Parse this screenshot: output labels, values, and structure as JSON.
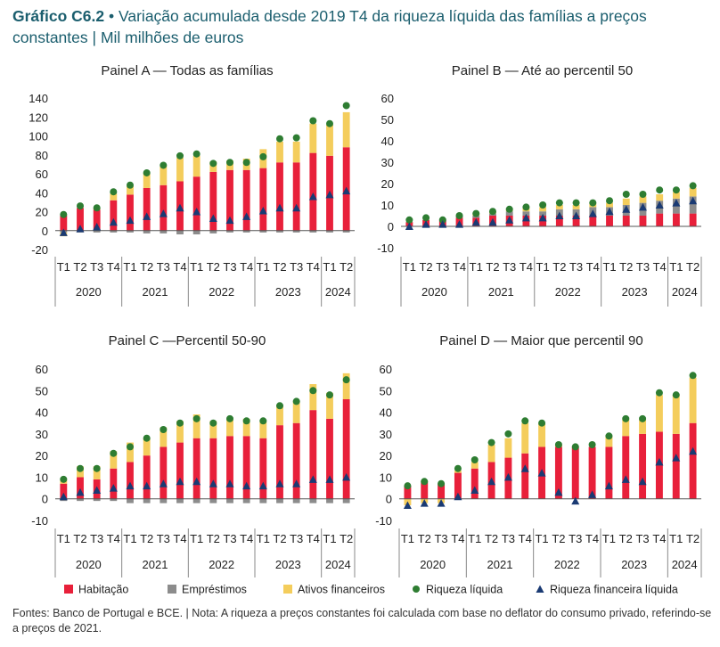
{
  "header": {
    "title_bold": "Gráfico C6.2",
    "separator": "•",
    "title_text": "Variação acumulada desde 2019 T4 da riqueza líquida das famílias a preços constantes",
    "pipe": "|",
    "unit": "Mil milhões de euros"
  },
  "footnote": "Fontes: Banco de Portugal e BCE.  |  Nota: A riqueza a preços constantes foi calculada com base no deflator do consumo privado, referindo-se a preços de 2021.",
  "colors": {
    "housing": "#e8203a",
    "loans": "#8c8c8c",
    "financial": "#f4cd5c",
    "net_wealth": "#2e7d32",
    "financial_net_wealth": "#1a3a73"
  },
  "legend": [
    {
      "label": "Habitação",
      "kind": "bar",
      "series": "housing"
    },
    {
      "label": "Empréstimos",
      "kind": "bar",
      "series": "loans"
    },
    {
      "label": "Ativos financeiros",
      "kind": "bar",
      "series": "financial"
    },
    {
      "label": "Riqueza líquida",
      "kind": "dot",
      "series": "net_wealth"
    },
    {
      "label": "Riqueza financeira líquida",
      "kind": "triangle",
      "series": "financial_net_wealth"
    }
  ],
  "chart_data": [
    {
      "type": "bar",
      "stacked": true,
      "title": "Painel A — Todas as famílias",
      "categories": [
        "T1",
        "T2",
        "T3",
        "T4",
        "T1",
        "T2",
        "T3",
        "T4",
        "T1",
        "T2",
        "T3",
        "T4",
        "T1",
        "T2",
        "T3",
        "T4",
        "T1",
        "T2"
      ],
      "years": [
        {
          "label": "2020",
          "span": 4
        },
        {
          "label": "2021",
          "span": 4
        },
        {
          "label": "2022",
          "span": 4
        },
        {
          "label": "2023",
          "span": 4
        },
        {
          "label": "2024",
          "span": 2
        }
      ],
      "ylim": [
        -20,
        140
      ],
      "yticks": [
        -20,
        0,
        20,
        40,
        60,
        80,
        100,
        120,
        140
      ],
      "series": {
        "housing": [
          16,
          24,
          22,
          32,
          38,
          45,
          48,
          52,
          57,
          62,
          64,
          64,
          66,
          72,
          72,
          82,
          79,
          88
        ],
        "loans": [
          -2,
          -2,
          -2,
          -2,
          -2,
          -3,
          -3,
          -4,
          -4,
          -3,
          -2,
          -2,
          -2,
          -2,
          -2,
          -2,
          -2,
          -2
        ],
        "financial": [
          -4,
          0,
          2,
          7,
          9,
          16,
          20,
          25,
          22,
          11,
          10,
          12,
          20,
          22,
          22,
          31,
          33,
          37
        ],
        "net_wealth": [
          17,
          26,
          24,
          41,
          48,
          61,
          69,
          79,
          81,
          71,
          72,
          72,
          78,
          97,
          98,
          116,
          113,
          132
        ],
        "financial_net_wealth": [
          -2,
          2,
          4,
          9,
          11,
          15,
          18,
          24,
          20,
          13,
          11,
          15,
          21,
          24,
          24,
          36,
          38,
          42
        ]
      }
    },
    {
      "type": "bar",
      "stacked": true,
      "title": "Painel B — Até ao percentil 50",
      "categories": [
        "T1",
        "T2",
        "T3",
        "T4",
        "T1",
        "T2",
        "T3",
        "T4",
        "T1",
        "T2",
        "T3",
        "T4",
        "T1",
        "T2",
        "T3",
        "T4",
        "T1",
        "T2"
      ],
      "years": [
        {
          "label": "2020",
          "span": 4
        },
        {
          "label": "2021",
          "span": 4
        },
        {
          "label": "2022",
          "span": 4
        },
        {
          "label": "2023",
          "span": 4
        },
        {
          "label": "2024",
          "span": 2
        }
      ],
      "ylim": [
        -10,
        60
      ],
      "yticks": [
        -10,
        0,
        10,
        20,
        30,
        40,
        50,
        60
      ],
      "series": {
        "housing": [
          2,
          3,
          3,
          4,
          4,
          5,
          5,
          5,
          5,
          5,
          5,
          5,
          5,
          5,
          5,
          6,
          6,
          6
        ],
        "loans": [
          0,
          0,
          0,
          1,
          1,
          1,
          2,
          2,
          2,
          3,
          3,
          4,
          4,
          5,
          6,
          6,
          7,
          8
        ],
        "financial": [
          0,
          0,
          0,
          0,
          1,
          1,
          1,
          2,
          2,
          2,
          2,
          2,
          2,
          3,
          3,
          3,
          3,
          4
        ],
        "net_wealth": [
          3,
          4,
          3,
          5,
          6,
          7,
          8,
          9,
          10,
          11,
          11,
          11,
          12,
          15,
          15,
          17,
          17,
          19
        ],
        "financial_net_wealth": [
          0,
          1,
          1,
          1,
          2,
          2,
          3,
          4,
          4,
          5,
          5,
          6,
          7,
          8,
          9,
          10,
          11,
          12
        ]
      }
    },
    {
      "type": "bar",
      "stacked": true,
      "title": "Painel C —Percentil 50-90",
      "categories": [
        "T1",
        "T2",
        "T3",
        "T4",
        "T1",
        "T2",
        "T3",
        "T4",
        "T1",
        "T2",
        "T3",
        "T4",
        "T1",
        "T2",
        "T3",
        "T4",
        "T1",
        "T2"
      ],
      "years": [
        {
          "label": "2020",
          "span": 4
        },
        {
          "label": "2021",
          "span": 4
        },
        {
          "label": "2022",
          "span": 4
        },
        {
          "label": "2023",
          "span": 4
        },
        {
          "label": "2024",
          "span": 2
        }
      ],
      "ylim": [
        -10,
        60
      ],
      "yticks": [
        -10,
        0,
        10,
        20,
        30,
        40,
        50,
        60
      ],
      "series": {
        "housing": [
          7,
          10,
          9,
          14,
          17,
          20,
          24,
          26,
          28,
          28,
          29,
          29,
          28,
          34,
          35,
          41,
          37,
          46
        ],
        "loans": [
          -1,
          -1,
          -1,
          -1,
          -2,
          -2,
          -2,
          -2,
          -2,
          -2,
          -2,
          -2,
          -2,
          -2,
          -2,
          -2,
          -2,
          -2
        ],
        "financial": [
          2,
          5,
          6,
          8,
          9,
          8,
          9,
          10,
          11,
          8,
          8,
          8,
          8,
          9,
          10,
          12,
          12,
          12
        ],
        "net_wealth": [
          9,
          14,
          14,
          21,
          24,
          28,
          32,
          35,
          37,
          35,
          37,
          36,
          36,
          43,
          45,
          50,
          48,
          55
        ],
        "financial_net_wealth": [
          1,
          3,
          4,
          5,
          6,
          6,
          7,
          8,
          8,
          7,
          7,
          6,
          6,
          7,
          7,
          9,
          9,
          10
        ]
      }
    },
    {
      "type": "bar",
      "stacked": true,
      "title": "Painel D — Maior que percentil 90",
      "categories": [
        "T1",
        "T2",
        "T3",
        "T4",
        "T1",
        "T2",
        "T3",
        "T4",
        "T1",
        "T2",
        "T3",
        "T4",
        "T1",
        "T2",
        "T3",
        "T4",
        "T1",
        "T2"
      ],
      "years": [
        {
          "label": "2020",
          "span": 4
        },
        {
          "label": "2021",
          "span": 4
        },
        {
          "label": "2022",
          "span": 4
        },
        {
          "label": "2023",
          "span": 4
        },
        {
          "label": "2024",
          "span": 2
        }
      ],
      "ylim": [
        -10,
        60
      ],
      "yticks": [
        -10,
        0,
        10,
        20,
        30,
        40,
        50,
        60
      ],
      "series": {
        "housing": [
          6,
          8,
          7,
          12,
          14,
          17,
          19,
          21,
          24,
          24,
          24,
          24,
          24,
          29,
          30,
          31,
          30,
          35
        ],
        "loans": [
          0,
          0,
          0,
          0,
          0,
          0,
          0,
          0,
          0,
          0,
          0,
          0,
          0,
          0,
          0,
          0,
          0,
          0
        ],
        "financial": [
          -3,
          -2,
          -2,
          1,
          3,
          8,
          9,
          14,
          11,
          1,
          0,
          0,
          5,
          8,
          7,
          17,
          18,
          21
        ],
        "net_wealth": [
          6,
          8,
          7,
          14,
          18,
          26,
          30,
          36,
          35,
          25,
          24,
          25,
          29,
          37,
          37,
          49,
          48,
          57
        ],
        "financial_net_wealth": [
          -3,
          -2,
          -2,
          1,
          4,
          8,
          10,
          14,
          12,
          3,
          -1,
          2,
          6,
          9,
          8,
          17,
          19,
          22
        ]
      }
    }
  ]
}
